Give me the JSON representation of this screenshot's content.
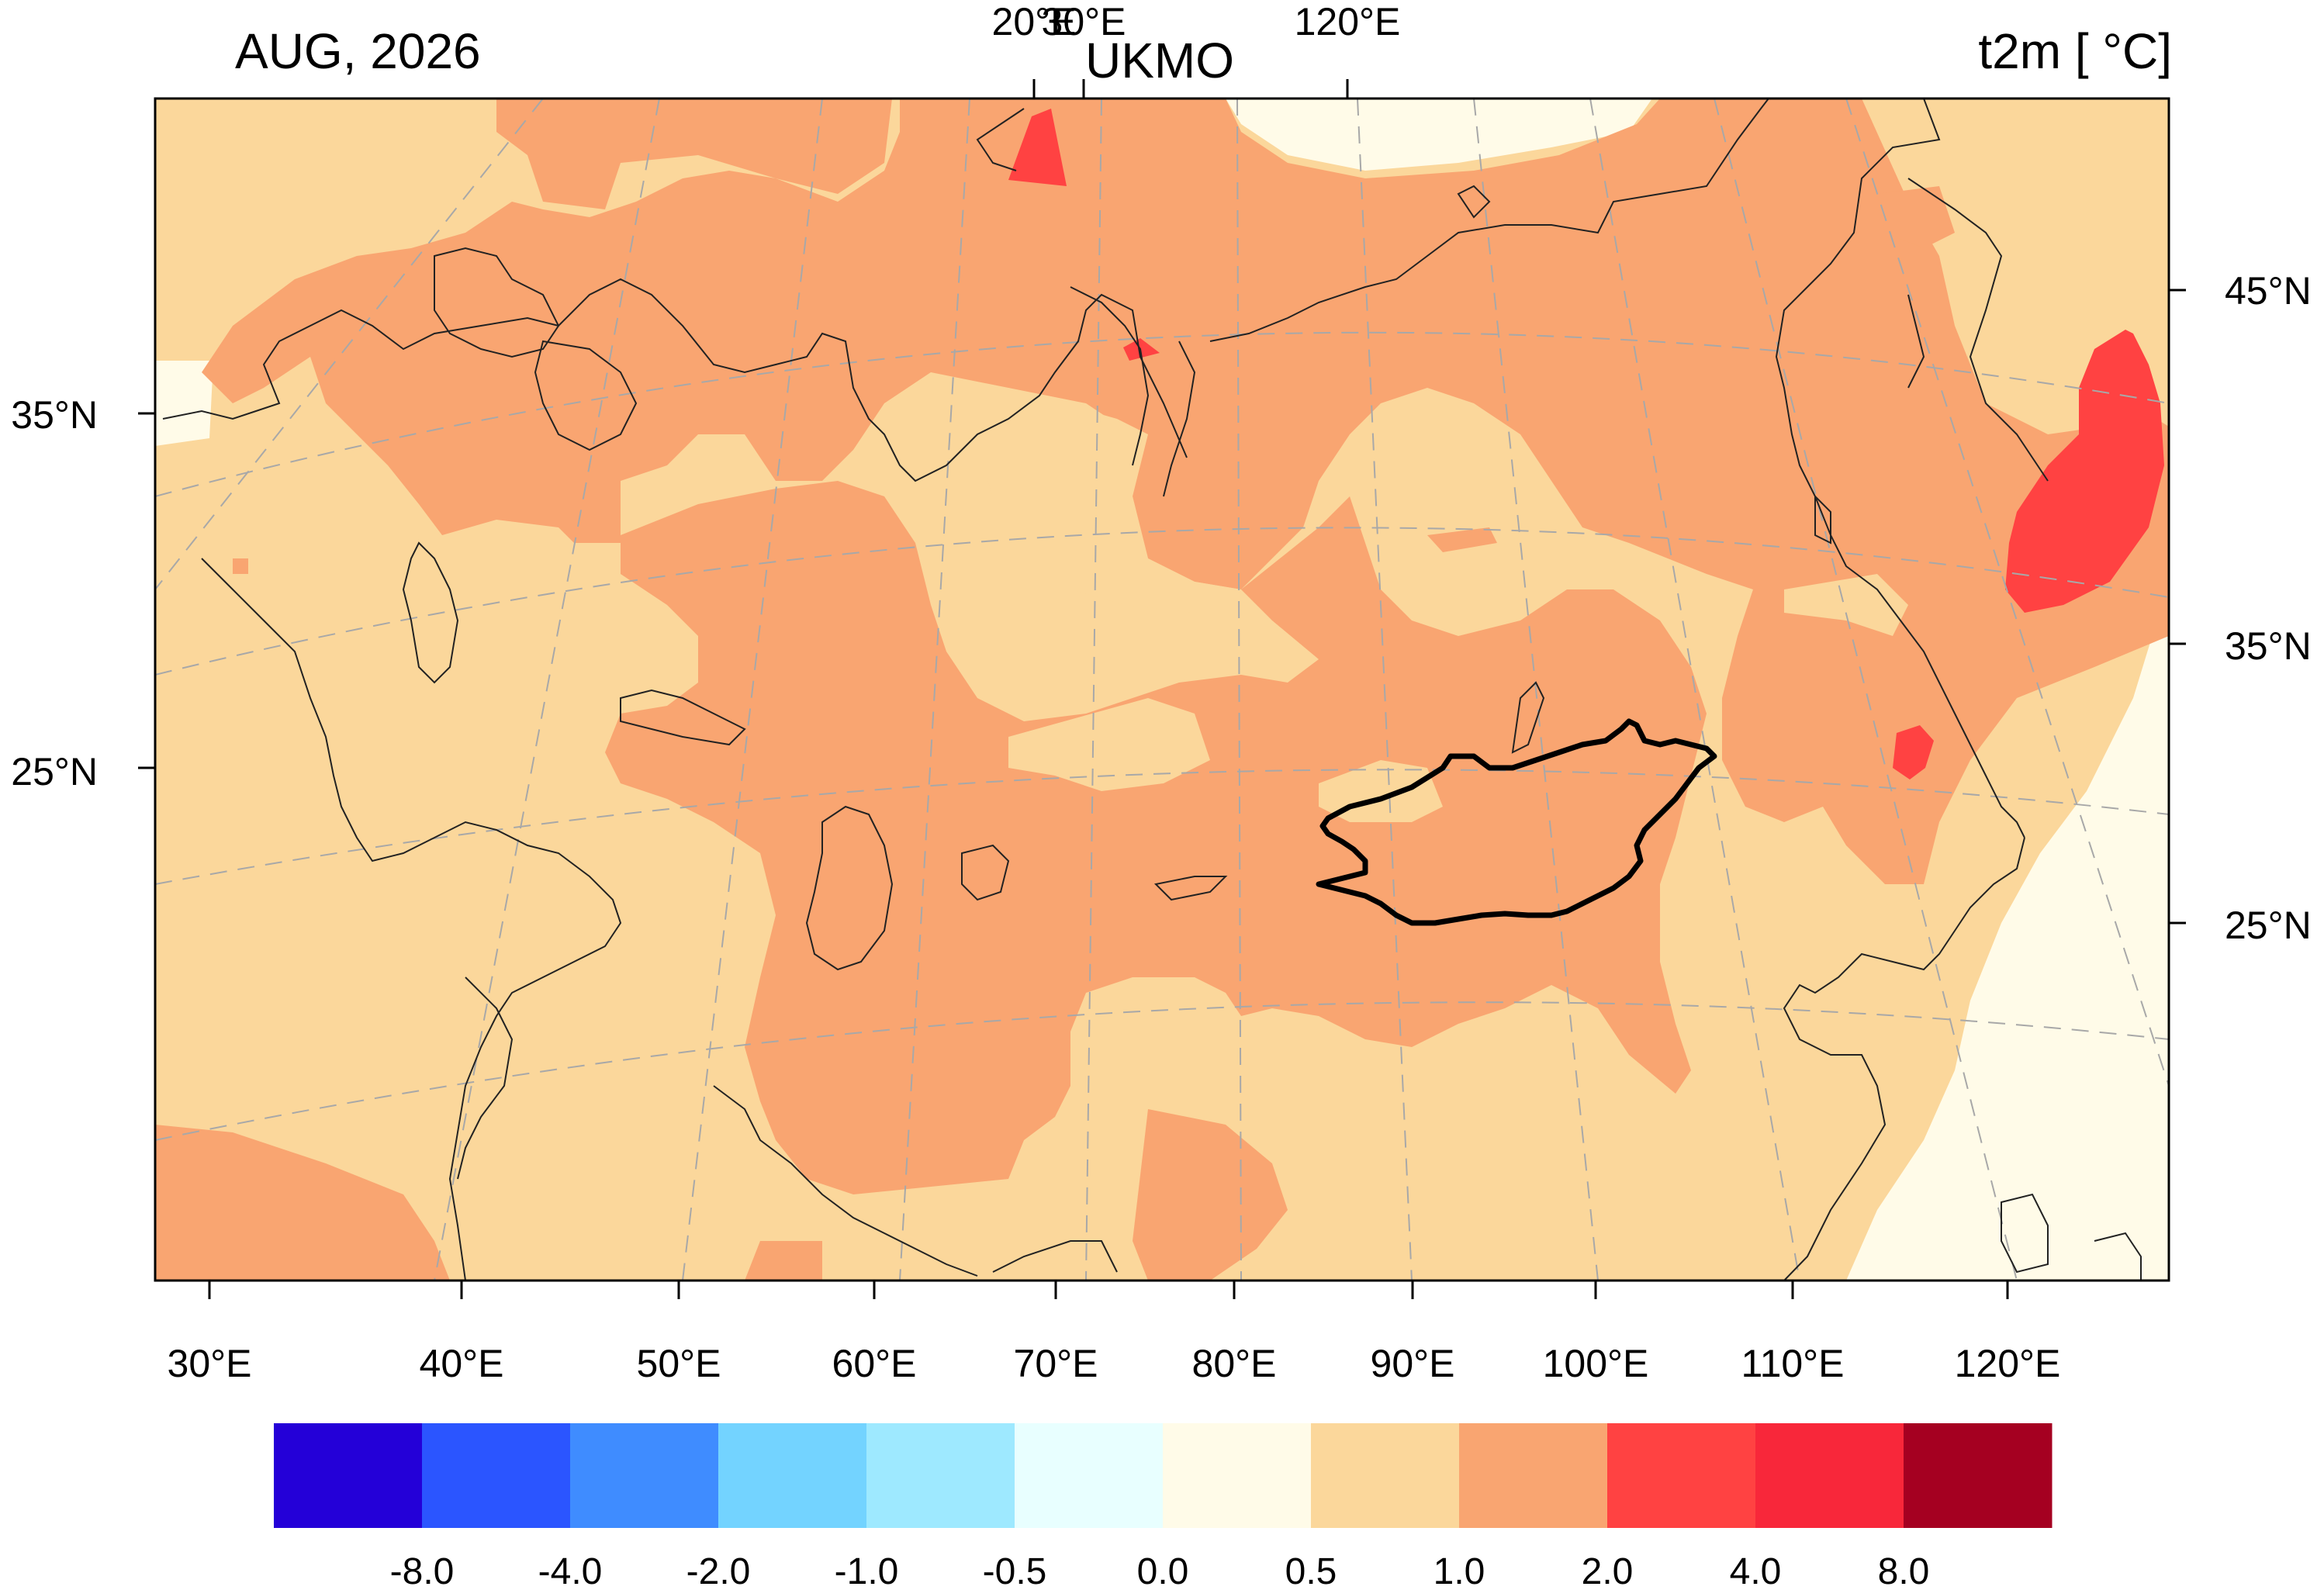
{
  "header": {
    "left_title": "AUG, 2026",
    "center_title": "UKMO",
    "right_title": "t2m [ °C]"
  },
  "axes": {
    "top_labels": [
      "20°E",
      "30°E",
      "120°E"
    ],
    "right_labels": [
      "45°N",
      "35°N",
      "25°N"
    ],
    "left_labels": [
      "35°N",
      "25°N"
    ],
    "bottom_labels": [
      "30°E",
      "40°E",
      "50°E",
      "60°E",
      "70°E",
      "80°E",
      "90°E",
      "100°E",
      "110°E",
      "120°E"
    ]
  },
  "colorbar": {
    "colors": [
      "#2400d8",
      "#2b55ff",
      "#3f8cff",
      "#73d3ff",
      "#9ee9ff",
      "#e8ffff",
      "#fffbe8",
      "#fbd79b",
      "#f9a571",
      "#ff4242",
      "#f8273a",
      "#a50021"
    ],
    "tick_labels": [
      "-8.0",
      "-4.0",
      "-2.0",
      "-1.0",
      "-0.5",
      "0.0",
      "0.5",
      "1.0",
      "2.0",
      "4.0",
      "8.0"
    ]
  },
  "legend_colors": {
    "level_0_5_1": "#fbd79b",
    "level_1_2": "#f9a571",
    "level_2_4": "#ff4242",
    "level_0_0_5": "#fffbe8"
  }
}
